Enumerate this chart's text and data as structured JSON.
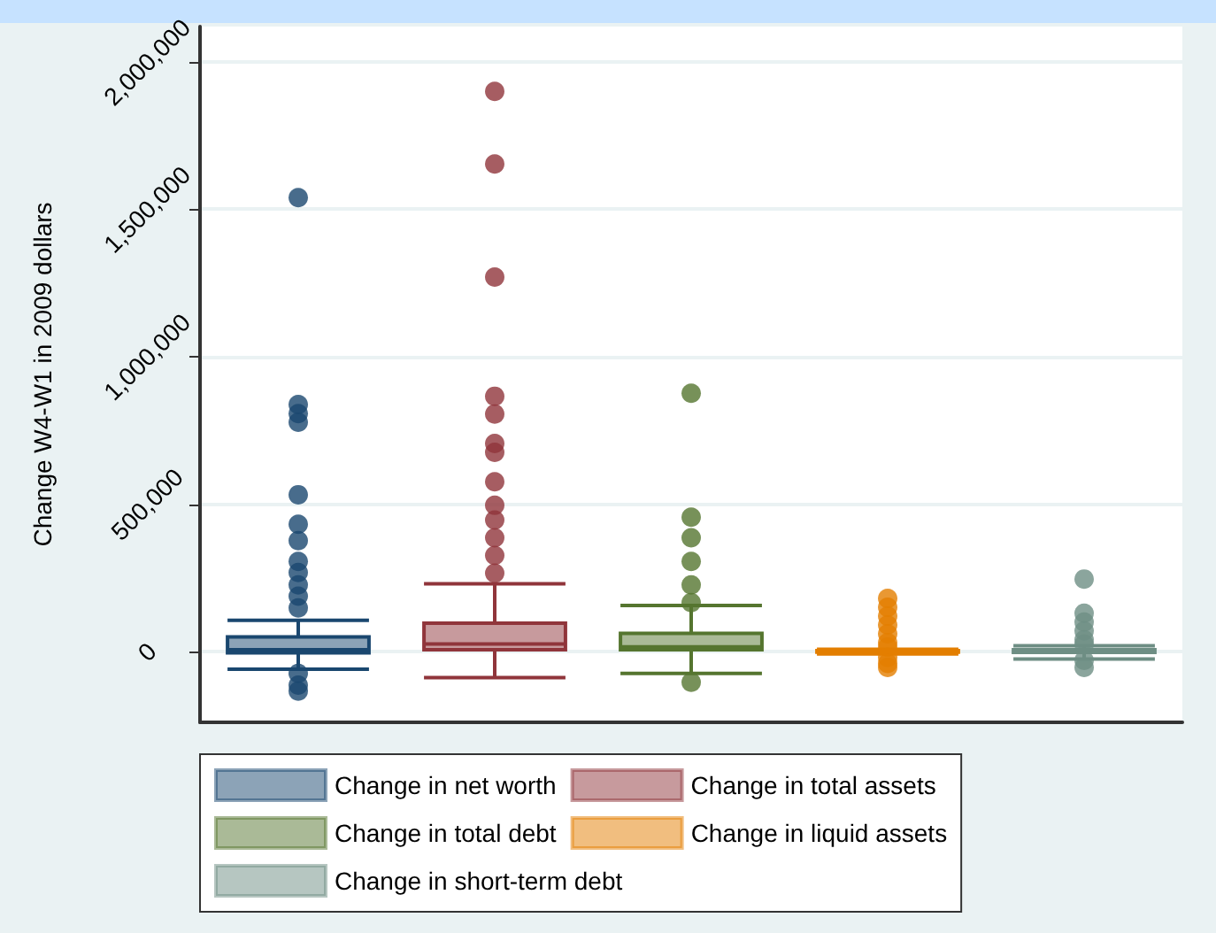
{
  "chart_data": {
    "type": "box",
    "ylabel": "Change W4-W1 in 2009 dollars",
    "categories": [
      null,
      null,
      null,
      null,
      null
    ],
    "ylim": [
      -240000,
      2120000
    ],
    "yticks": [
      {
        "value": 0,
        "label": "0"
      },
      {
        "value": 500000,
        "label": "500,000"
      },
      {
        "value": 1000000,
        "label": "1,000,000"
      },
      {
        "value": 1500000,
        "label": "1,500,000"
      },
      {
        "value": 2000000,
        "label": "2,000,000"
      }
    ],
    "grid": "y",
    "legend": "bottom",
    "series": [
      {
        "name": "Change in net worth",
        "color": "#1a476f",
        "boxes": [
          {
            "low": -60000,
            "q1": -4000,
            "median": 6000,
            "q3": 50000,
            "high": 106000,
            "outliers": [
              1540000,
              838000,
              807000,
              778000,
              532000,
              432000,
              376000,
              306000,
              268000,
              226000,
              188000,
              148000,
              -74000,
              -114000,
              -134000
            ]
          },
          null,
          null,
          null,
          null
        ]
      },
      {
        "name": "Change in total assets",
        "color": "#90353b",
        "boxes": [
          null,
          {
            "low": -88000,
            "q1": 6000,
            "median": 26000,
            "q3": 96000,
            "high": 230000,
            "outliers": [
              1900000,
              1654000,
              1270000,
              866000,
              806000,
              706000,
              676000,
              576000,
              496000,
              446000,
              386000,
              326000,
              266000
            ]
          },
          null,
          null,
          null
        ]
      },
      {
        "name": "Change in total debt",
        "color": "#55752f",
        "boxes": [
          null,
          null,
          {
            "low": -74000,
            "q1": 6000,
            "median": 16000,
            "q3": 62000,
            "high": 156000,
            "outliers": [
              876000,
              456000,
              386000,
              306000,
              226000,
              166000,
              -104000
            ]
          },
          null,
          null
        ]
      },
      {
        "name": "Change in liquid assets",
        "color": "#e37e00",
        "boxes": [
          null,
          null,
          null,
          {
            "low": -8000,
            "q1": -2000,
            "median": 0,
            "q3": 3000,
            "high": 8000,
            "outliers": [
              180000,
              150000,
              120000,
              90000,
              60000,
              30000,
              15000,
              -20000,
              -40000,
              -54000
            ]
          },
          null
        ]
      },
      {
        "name": "Change in short-term debt",
        "color": "#6e8e84",
        "boxes": [
          null,
          null,
          null,
          null,
          {
            "low": -25000,
            "q1": -3000,
            "median": 0,
            "q3": 6000,
            "high": 20000,
            "outliers": [
              246000,
              130000,
              100000,
              70000,
              40000,
              25000,
              -30000,
              -54000
            ]
          }
        ]
      }
    ]
  }
}
